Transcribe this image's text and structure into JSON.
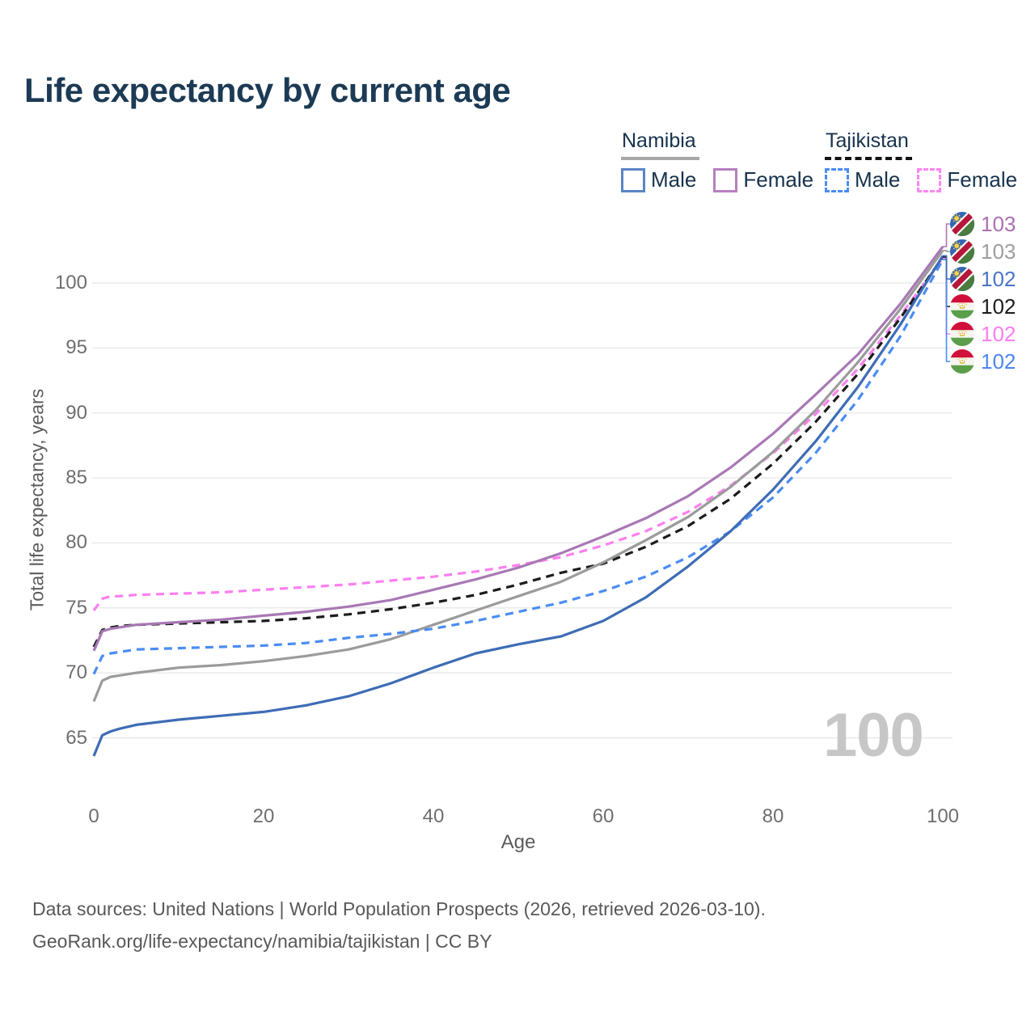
{
  "title": "Life expectancy by current age",
  "watermark": "100",
  "legend": {
    "groups": [
      {
        "label": "Namibia",
        "line_style": "solid",
        "items": [
          {
            "label": "Male",
            "color": "#5b84c4",
            "dash": false
          },
          {
            "label": "Female",
            "color": "#b77fc0",
            "dash": false
          }
        ]
      },
      {
        "label": "Tajikistan",
        "line_style": "dashed",
        "items": [
          {
            "label": "Male",
            "color": "#4a8cf3",
            "dash": true
          },
          {
            "label": "Female",
            "color": "#ff85f3",
            "dash": true
          }
        ]
      }
    ]
  },
  "footer": {
    "line1": "Data sources: United Nations | World Population Prospects (2026, retrieved 2026-03-10).",
    "line2": "GeoRank.org/life-expectancy/namibia/tajikistan | CC BY"
  },
  "chart_data": {
    "type": "line",
    "title": "Life expectancy by current age",
    "xlabel": "Age",
    "ylabel": "Total life expectancy, years",
    "xlim": [
      0,
      100
    ],
    "ylim": [
      65,
      100
    ],
    "xticks": [
      0,
      20,
      40,
      60,
      80,
      100
    ],
    "yticks": [
      65,
      70,
      75,
      80,
      85,
      90,
      95,
      100
    ],
    "grid": true,
    "legend_position": "top-right",
    "x": [
      0,
      1,
      2,
      3,
      5,
      10,
      15,
      20,
      25,
      30,
      35,
      40,
      45,
      50,
      55,
      60,
      65,
      70,
      75,
      80,
      85,
      90,
      95,
      100
    ],
    "series": [
      {
        "name": "Tajikistan Female",
        "country": "tajikistan",
        "sex": "female",
        "color": "#ff7ef0",
        "dash": true,
        "values": [
          74.8,
          75.7,
          75.9,
          75.9,
          76.0,
          76.1,
          76.2,
          76.4,
          76.6,
          76.8,
          77.1,
          77.4,
          77.8,
          78.3,
          78.9,
          79.8,
          80.9,
          82.4,
          84.4,
          86.9,
          89.9,
          93.4,
          97.5,
          101.9
        ],
        "end_label": "102",
        "end_label_color": "#fb7cf0",
        "label_row": 4
      },
      {
        "name": "Tajikistan",
        "country": "tajikistan",
        "sex": "total",
        "color": "#1c1c1c",
        "dash": true,
        "values": [
          72.0,
          73.3,
          73.5,
          73.6,
          73.7,
          73.8,
          73.9,
          74.0,
          74.2,
          74.5,
          74.9,
          75.4,
          76.0,
          76.8,
          77.7,
          78.4,
          79.7,
          81.3,
          83.4,
          86.1,
          89.3,
          93.0,
          97.3,
          102.0
        ],
        "end_label": "102",
        "end_label_color": "#1c1c1c",
        "label_row": 3
      },
      {
        "name": "Namibia Female",
        "country": "namibia",
        "sex": "female",
        "color": "#a878b4",
        "dash": false,
        "values": [
          71.7,
          73.2,
          73.4,
          73.5,
          73.7,
          73.9,
          74.1,
          74.4,
          74.7,
          75.1,
          75.6,
          76.4,
          77.2,
          78.1,
          79.2,
          80.5,
          81.9,
          83.6,
          85.8,
          88.4,
          91.4,
          94.5,
          98.4,
          102.8
        ],
        "end_label": "103",
        "end_label_color": "#ad6fb0",
        "label_row": 0
      },
      {
        "name": "Namibia",
        "country": "namibia",
        "sex": "total",
        "color": "#9b9b9b",
        "dash": false,
        "values": [
          67.8,
          69.4,
          69.7,
          69.8,
          70.0,
          70.4,
          70.6,
          70.9,
          71.3,
          71.8,
          72.6,
          73.7,
          74.8,
          75.9,
          77.0,
          78.5,
          80.2,
          82.0,
          84.3,
          87.0,
          90.2,
          93.9,
          98.0,
          102.5
        ],
        "end_label": "103",
        "end_label_color": "#9e9e9e",
        "label_row": 1
      },
      {
        "name": "Tajikistan Male",
        "country": "tajikistan",
        "sex": "male",
        "color": "#4a8cf3",
        "dash": true,
        "values": [
          69.9,
          71.3,
          71.5,
          71.6,
          71.8,
          71.9,
          72.0,
          72.1,
          72.3,
          72.7,
          73.0,
          73.4,
          74.0,
          74.7,
          75.4,
          76.3,
          77.4,
          78.9,
          80.9,
          83.5,
          86.9,
          91.0,
          95.9,
          101.8
        ],
        "end_label": "102",
        "end_label_color": "#4d86f2",
        "label_row": 5
      },
      {
        "name": "Namibia Male",
        "country": "namibia",
        "sex": "male",
        "color": "#3e6cb5",
        "dash": false,
        "values": [
          63.6,
          65.2,
          65.5,
          65.7,
          66.0,
          66.4,
          66.7,
          67.0,
          67.5,
          68.2,
          69.2,
          70.4,
          71.5,
          72.2,
          72.8,
          74.0,
          75.8,
          78.2,
          80.9,
          84.1,
          87.8,
          92.0,
          96.8,
          102.1
        ],
        "end_label": "102",
        "end_label_color": "#4b74c9",
        "label_row": 2
      }
    ]
  }
}
